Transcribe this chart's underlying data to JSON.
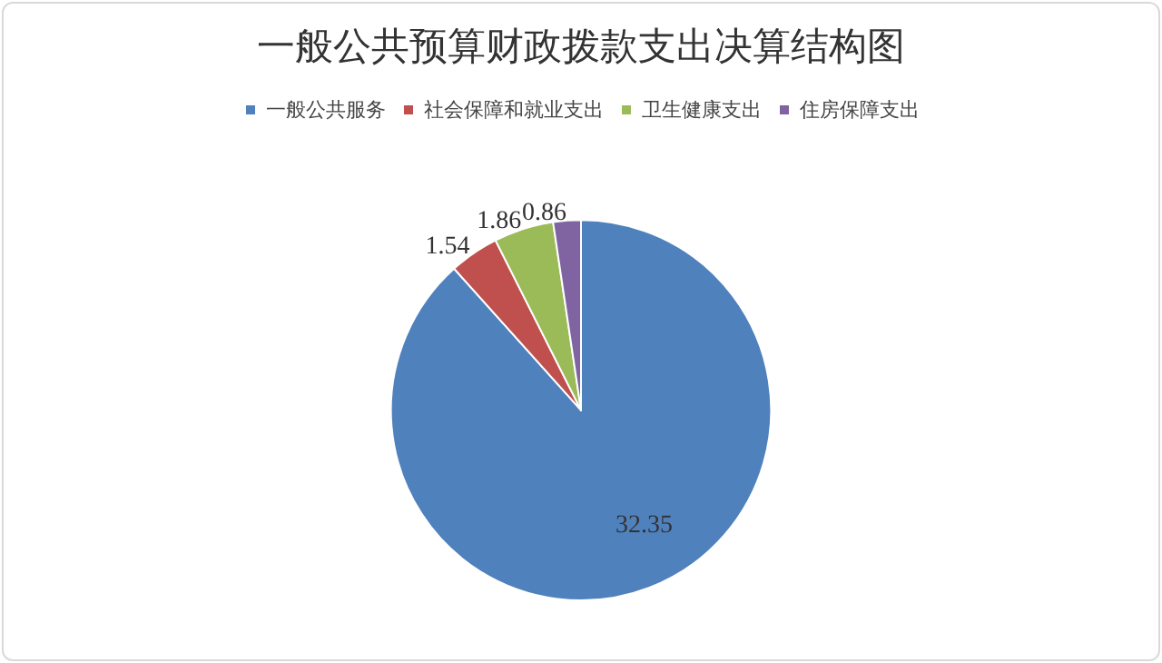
{
  "chart_data": {
    "type": "pie",
    "title": "一般公共预算财政拨款支出决算结构图",
    "categories": [
      "一般公共服务",
      "社会保障和就业支出",
      "卫生健康支出",
      "住房保障支出"
    ],
    "values": [
      32.35,
      1.54,
      1.86,
      0.86
    ],
    "colors": [
      "#4f81bd",
      "#c0504d",
      "#9bbb59",
      "#8064a2"
    ],
    "data_labels": true,
    "legend": "top"
  }
}
